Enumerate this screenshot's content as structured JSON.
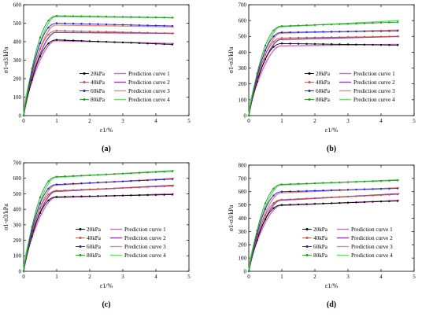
{
  "figure": {
    "panel_labels": [
      "(a)",
      "(b)",
      "(c)",
      "(d)"
    ],
    "series_colors": [
      "#000000",
      "#c0504d",
      "#1f1fd6",
      "#1e9e1e"
    ],
    "prediction_colors": [
      "#d865d8",
      "#8f3fb3",
      "#e98a7a",
      "#6fd86f"
    ]
  },
  "chart_data": [
    {
      "type": "line",
      "xlabel": "ε1/%",
      "ylabel": "σ1-σ3/kPa",
      "xlim": [
        0,
        5
      ],
      "ylim": [
        0,
        600
      ],
      "x_ticks": [
        "0",
        "1",
        "2",
        "3",
        "4",
        "5"
      ],
      "y_ticks": [
        "0",
        "100",
        "200",
        "300",
        "400",
        "500",
        "600"
      ],
      "legend": [
        "20kPa",
        "Prediction curve 1",
        "40kPa",
        "Prediction curve 2",
        "60kPa",
        "Prediction curve 3",
        "80kPa",
        "Prediction curve 4"
      ],
      "legend_position": "center-right",
      "series": [
        {
          "name": "20kPa",
          "peak": 410,
          "peak_x": 1.0,
          "end": 385
        },
        {
          "name": "40kPa",
          "peak": 460,
          "peak_x": 1.0,
          "end": 445
        },
        {
          "name": "60kPa",
          "peak": 500,
          "peak_x": 1.0,
          "end": 485
        },
        {
          "name": "80kPa",
          "peak": 540,
          "peak_x": 1.0,
          "end": 530
        }
      ],
      "predictions": [
        {
          "name": "Prediction curve 1",
          "plateau": 405,
          "end": 390
        },
        {
          "name": "Prediction curve 2",
          "plateau": 450,
          "end": 445
        },
        {
          "name": "Prediction curve 3",
          "plateau": 490,
          "end": 480
        },
        {
          "name": "Prediction curve 4",
          "plateau": 535,
          "end": 530
        }
      ]
    },
    {
      "type": "line",
      "xlabel": "ε1/%",
      "ylabel": "σ1-σ3/kPa",
      "xlim": [
        0,
        5
      ],
      "ylim": [
        0,
        700
      ],
      "x_ticks": [
        "0",
        "1",
        "2",
        "3",
        "4",
        "5"
      ],
      "y_ticks": [
        "0",
        "100",
        "200",
        "300",
        "400",
        "500",
        "600",
        "700"
      ],
      "legend": [
        "20kPa",
        "Prediction curve 1",
        "40kPa",
        "Prediction curve 2",
        "60kPa",
        "Prediction curve 3",
        "80kPa",
        "Prediction curve 4"
      ],
      "legend_position": "center-right",
      "series": [
        {
          "name": "20kPa",
          "peak": 455,
          "peak_x": 1.0,
          "end": 445
        },
        {
          "name": "40kPa",
          "peak": 490,
          "peak_x": 1.0,
          "end": 500
        },
        {
          "name": "60kPa",
          "peak": 525,
          "peak_x": 1.0,
          "end": 535
        },
        {
          "name": "80kPa",
          "peak": 565,
          "peak_x": 1.0,
          "end": 590
        }
      ],
      "predictions": [
        {
          "name": "Prediction curve 1",
          "plateau": 440,
          "end": 450
        },
        {
          "name": "Prediction curve 2",
          "plateau": 480,
          "end": 500
        },
        {
          "name": "Prediction curve 3",
          "plateau": 520,
          "end": 540
        },
        {
          "name": "Prediction curve 4",
          "plateau": 560,
          "end": 600
        }
      ]
    },
    {
      "type": "line",
      "xlabel": "ε1/%",
      "ylabel": "σ1-σ3/kPa",
      "xlim": [
        0,
        5
      ],
      "ylim": [
        0,
        700
      ],
      "x_ticks": [
        "0",
        "1",
        "2",
        "3",
        "4",
        "5"
      ],
      "y_ticks": [
        "0",
        "100",
        "200",
        "300",
        "400",
        "500",
        "600",
        "700"
      ],
      "legend": [
        "20kPa",
        "Prediction curve 1",
        "40kPa",
        "Prediction curve 2",
        "60kPa",
        "Prediction curve 3",
        "80kPa",
        "Prediction curve 4"
      ],
      "legend_position": "bottom-right",
      "series": [
        {
          "name": "20kPa",
          "peak": 480,
          "peak_x": 1.0,
          "end": 495
        },
        {
          "name": "40kPa",
          "peak": 520,
          "peak_x": 1.0,
          "end": 550
        },
        {
          "name": "60kPa",
          "peak": 560,
          "peak_x": 1.0,
          "end": 595
        },
        {
          "name": "80kPa",
          "peak": 610,
          "peak_x": 1.0,
          "end": 645
        }
      ],
      "predictions": [
        {
          "name": "Prediction curve 1",
          "plateau": 475,
          "end": 500
        },
        {
          "name": "Prediction curve 2",
          "plateau": 515,
          "end": 555
        },
        {
          "name": "Prediction curve 3",
          "plateau": 555,
          "end": 600
        },
        {
          "name": "Prediction curve 4",
          "plateau": 605,
          "end": 650
        }
      ]
    },
    {
      "type": "line",
      "xlabel": "ε1/%",
      "ylabel": "σ1-σ3/kPa",
      "xlim": [
        0,
        5
      ],
      "ylim": [
        0,
        800
      ],
      "x_ticks": [
        "0",
        "1",
        "2",
        "3",
        "4",
        "5"
      ],
      "y_ticks": [
        "0",
        "100",
        "200",
        "300",
        "400",
        "500",
        "600",
        "700",
        "800"
      ],
      "legend": [
        "20kPa",
        "Prediction curve 1",
        "40kPa",
        "Prediction curve 2",
        "60kPa",
        "Prediction curve 3",
        "80kPa",
        "Prediction curve 4"
      ],
      "legend_position": "bottom-right",
      "series": [
        {
          "name": "20kPa",
          "peak": 500,
          "peak_x": 1.0,
          "end": 530
        },
        {
          "name": "40kPa",
          "peak": 540,
          "peak_x": 1.0,
          "end": 580
        },
        {
          "name": "60kPa",
          "peak": 600,
          "peak_x": 1.0,
          "end": 625
        },
        {
          "name": "80kPa",
          "peak": 655,
          "peak_x": 1.0,
          "end": 685
        }
      ],
      "predictions": [
        {
          "name": "Prediction curve 1",
          "plateau": 495,
          "end": 535
        },
        {
          "name": "Prediction curve 2",
          "plateau": 535,
          "end": 585
        },
        {
          "name": "Prediction curve 3",
          "plateau": 590,
          "end": 630
        },
        {
          "name": "Prediction curve 4",
          "plateau": 650,
          "end": 690
        }
      ]
    }
  ]
}
